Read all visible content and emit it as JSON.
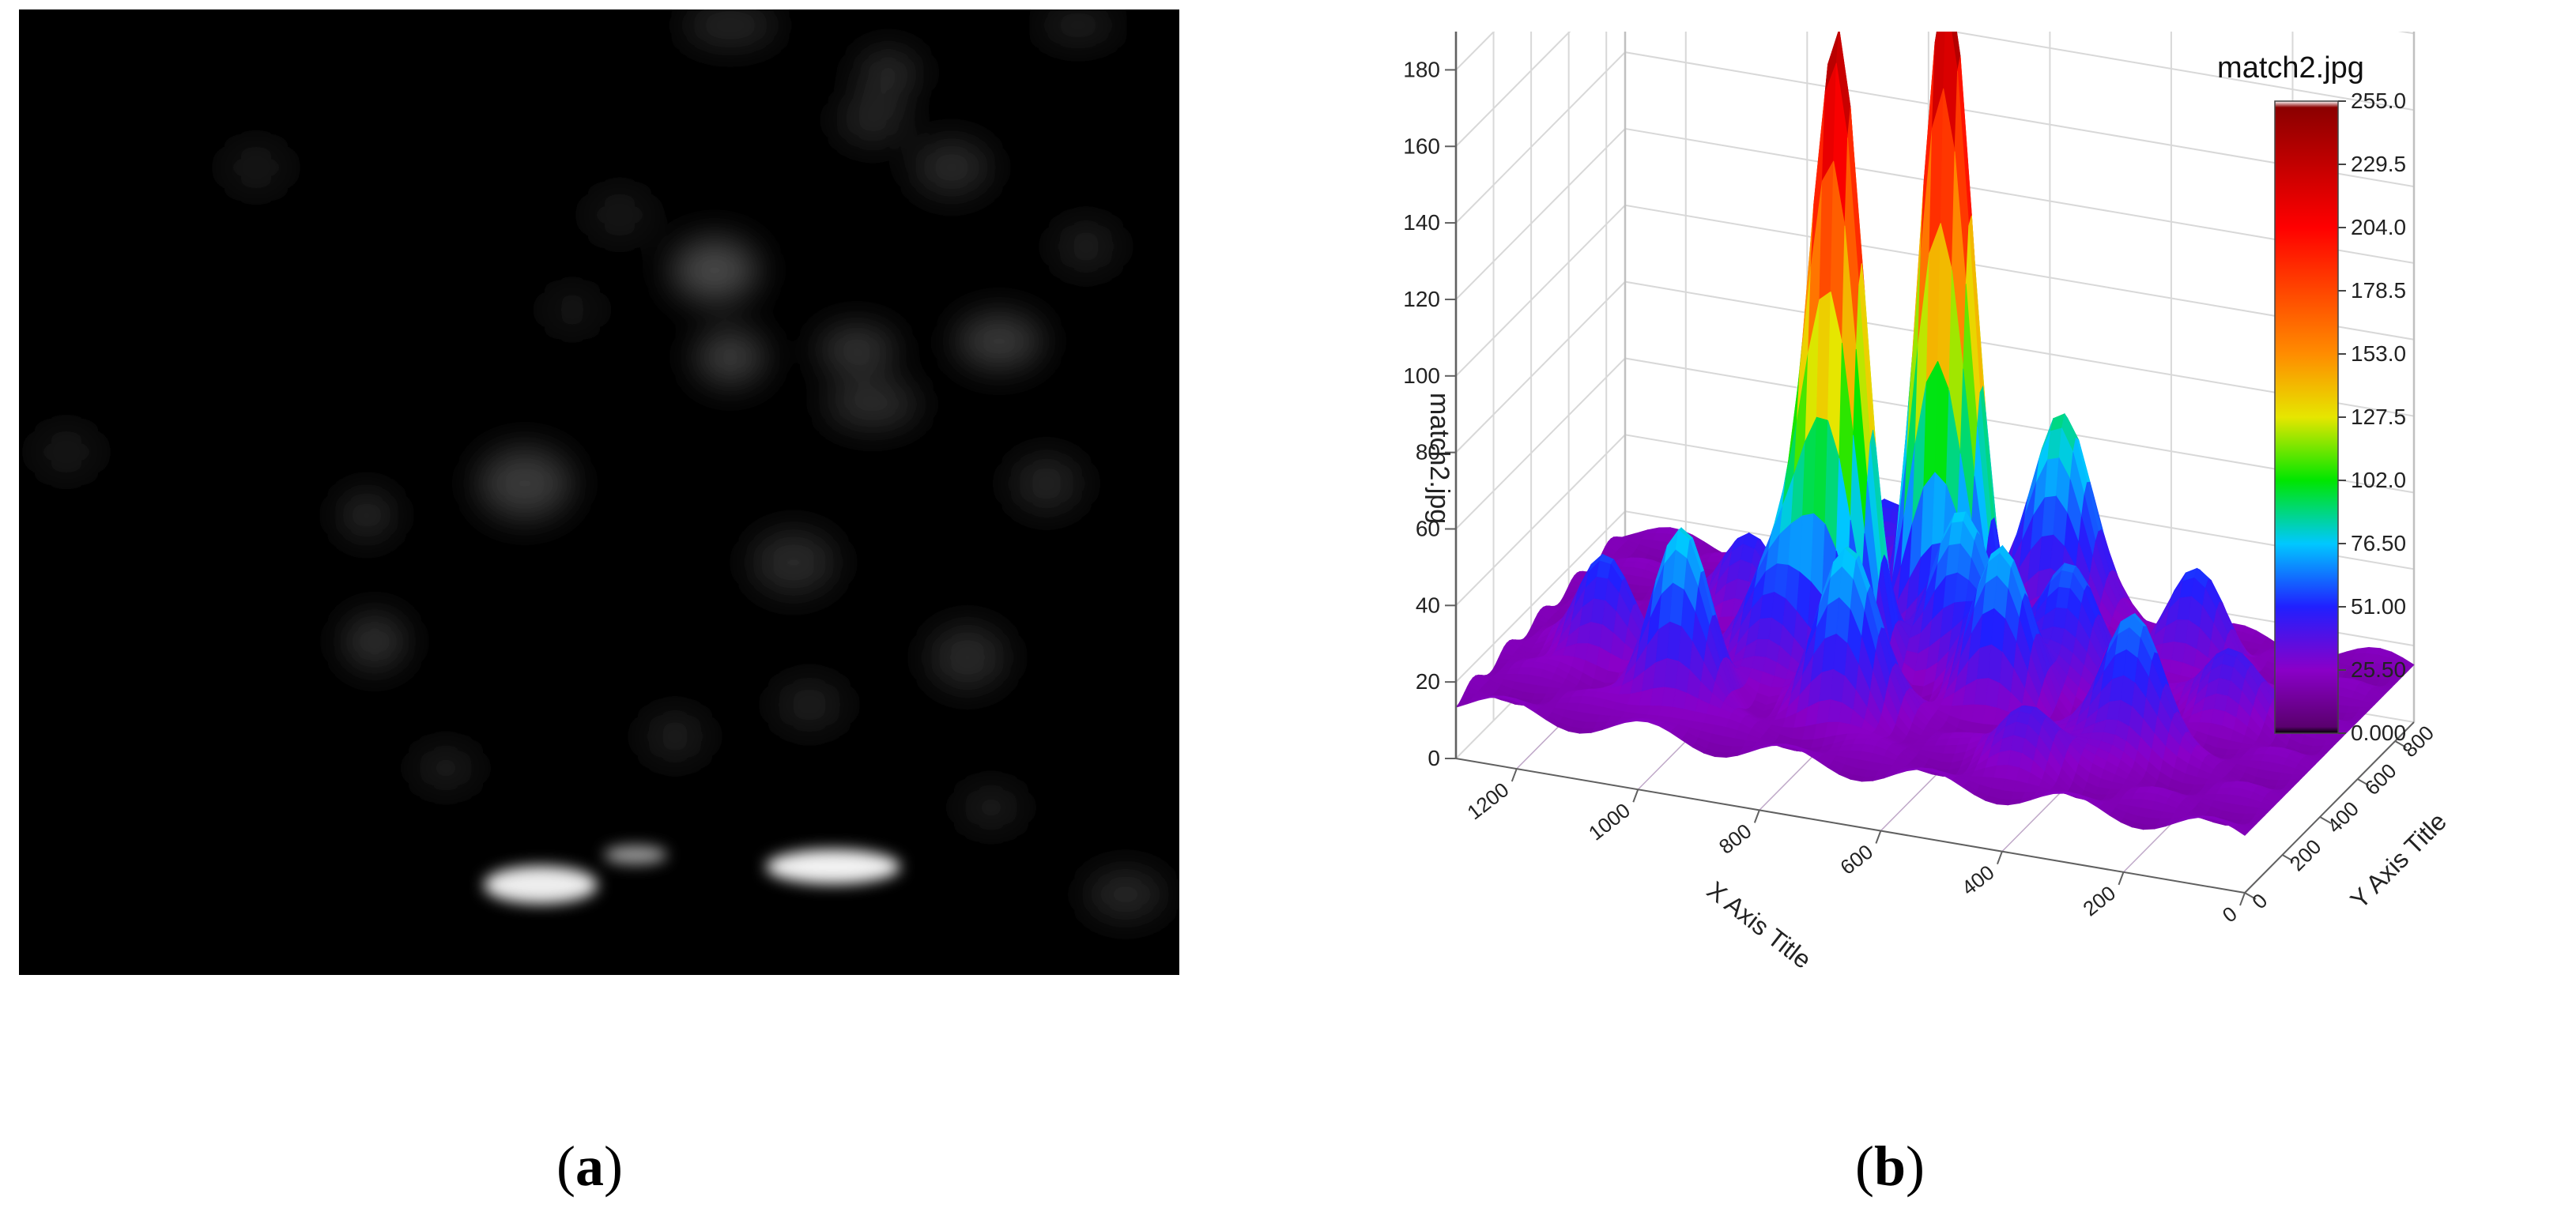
{
  "captions": {
    "a_open": "(",
    "a_letter": "a",
    "a_close": ")",
    "b_open": "(",
    "b_letter": "b",
    "b_close": ")"
  },
  "chart_data": {
    "type": "surface",
    "title": "",
    "colorbar_title": "match2.jpg",
    "xlabel": "X Axis Title",
    "ylabel": "Y Axis Title",
    "zlabel": "match2.jpg",
    "xlim": [
      0,
      1300
    ],
    "ylim": [
      0,
      900
    ],
    "zlim": [
      0,
      190
    ],
    "x_ticks": [
      "0",
      "200",
      "400",
      "600",
      "800",
      "1000",
      "1200"
    ],
    "y_ticks": [
      "0",
      "200",
      "400",
      "600",
      "800"
    ],
    "z_ticks": [
      "0",
      "20",
      "40",
      "60",
      "80",
      "100",
      "120",
      "140",
      "160",
      "180"
    ],
    "colorbar_ticks": [
      "255.0",
      "229.5",
      "204.0",
      "178.5",
      "153.0",
      "127.5",
      "102.0",
      "76.50",
      "51.00",
      "25.50",
      "0.000"
    ],
    "colorbar_range": [
      0,
      255
    ],
    "colormap": [
      "#000000",
      "#5a006e",
      "#8a00c8",
      "#2020ff",
      "#00c8ff",
      "#00e600",
      "#e6e600",
      "#ff8c00",
      "#ff0000",
      "#8b0000",
      "#ffffff"
    ],
    "base_level": 15,
    "peaks": [
      {
        "x": 800,
        "y": 420,
        "z": 180
      },
      {
        "x": 690,
        "y": 640,
        "z": 188
      },
      {
        "x": 980,
        "y": 170,
        "z": 58
      },
      {
        "x": 560,
        "y": 840,
        "z": 70
      },
      {
        "x": 720,
        "y": 220,
        "z": 60
      },
      {
        "x": 520,
        "y": 390,
        "z": 55
      },
      {
        "x": 280,
        "y": 300,
        "z": 52
      },
      {
        "x": 620,
        "y": 500,
        "z": 58
      },
      {
        "x": 880,
        "y": 360,
        "z": 50
      },
      {
        "x": 450,
        "y": 540,
        "z": 48
      },
      {
        "x": 300,
        "y": 700,
        "z": 40
      },
      {
        "x": 1150,
        "y": 300,
        "z": 42
      },
      {
        "x": 750,
        "y": 760,
        "z": 44
      },
      {
        "x": 180,
        "y": 520,
        "z": 35
      },
      {
        "x": 1000,
        "y": 600,
        "z": 38
      },
      {
        "x": 400,
        "y": 150,
        "z": 32
      },
      {
        "x": 850,
        "y": 850,
        "z": 36
      }
    ]
  }
}
